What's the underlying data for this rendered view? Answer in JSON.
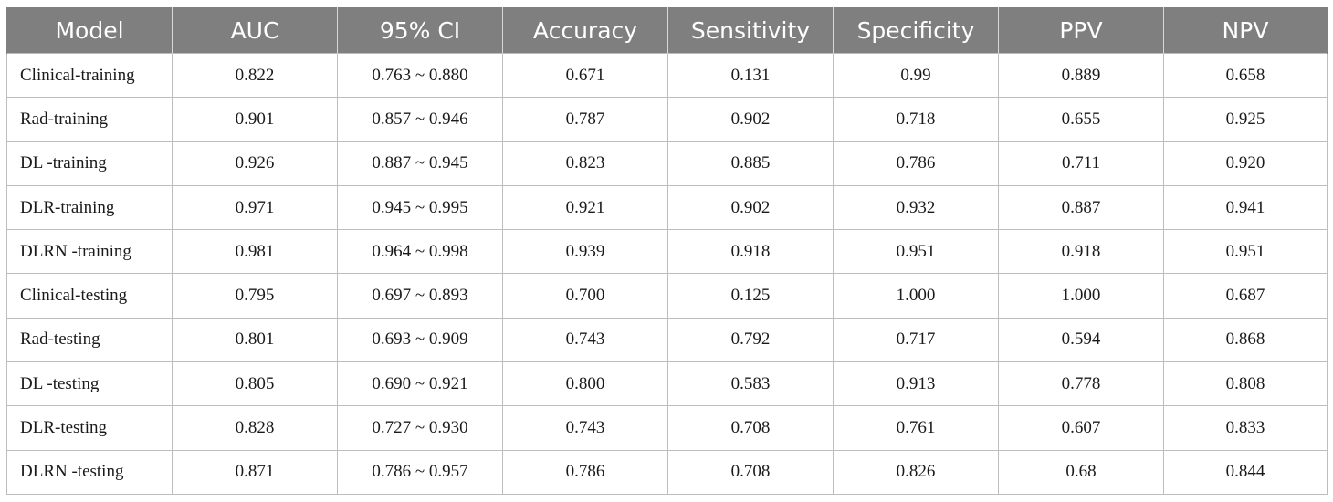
{
  "table": {
    "headers": [
      "Model",
      "AUC",
      "95% CI",
      "Accuracy",
      "Sensitivity",
      "Specificity",
      "PPV",
      "NPV"
    ],
    "rows": [
      [
        "Clinical-training",
        "0.822",
        "0.763 ~ 0.880",
        "0.671",
        "0.131",
        "0.99",
        "0.889",
        "0.658"
      ],
      [
        "Rad-training",
        "0.901",
        "0.857 ~ 0.946",
        "0.787",
        "0.902",
        "0.718",
        "0.655",
        "0.925"
      ],
      [
        "DL -training",
        "0.926",
        "0.887 ~ 0.945",
        "0.823",
        "0.885",
        "0.786",
        "0.711",
        "0.920"
      ],
      [
        "DLR-training",
        "0.971",
        "0.945 ~ 0.995",
        "0.921",
        "0.902",
        "0.932",
        "0.887",
        "0.941"
      ],
      [
        "DLRN -training",
        "0.981",
        "0.964 ~ 0.998",
        "0.939",
        "0.918",
        "0.951",
        "0.918",
        "0.951"
      ],
      [
        "Clinical-testing",
        "0.795",
        "0.697 ~ 0.893",
        "0.700",
        "0.125",
        "1.000",
        "1.000",
        "0.687"
      ],
      [
        "Rad-testing",
        "0.801",
        "0.693 ~ 0.909",
        "0.743",
        "0.792",
        "0.717",
        "0.594",
        "0.868"
      ],
      [
        "DL -testing",
        "0.805",
        "0.690 ~ 0.921",
        "0.800",
        "0.583",
        "0.913",
        "0.778",
        "0.808"
      ],
      [
        "DLR-testing",
        "0.828",
        "0.727 ~ 0.930",
        "0.743",
        "0.708",
        "0.761",
        "0.607",
        "0.833"
      ],
      [
        "DLRN -testing",
        "0.871",
        "0.786 ~ 0.957",
        "0.786",
        "0.708",
        "0.826",
        "0.68",
        "0.844"
      ]
    ]
  },
  "colors": {
    "header_bg": "#7f7f7f",
    "header_text": "#ffffff",
    "grid": "#bdbdbd"
  }
}
